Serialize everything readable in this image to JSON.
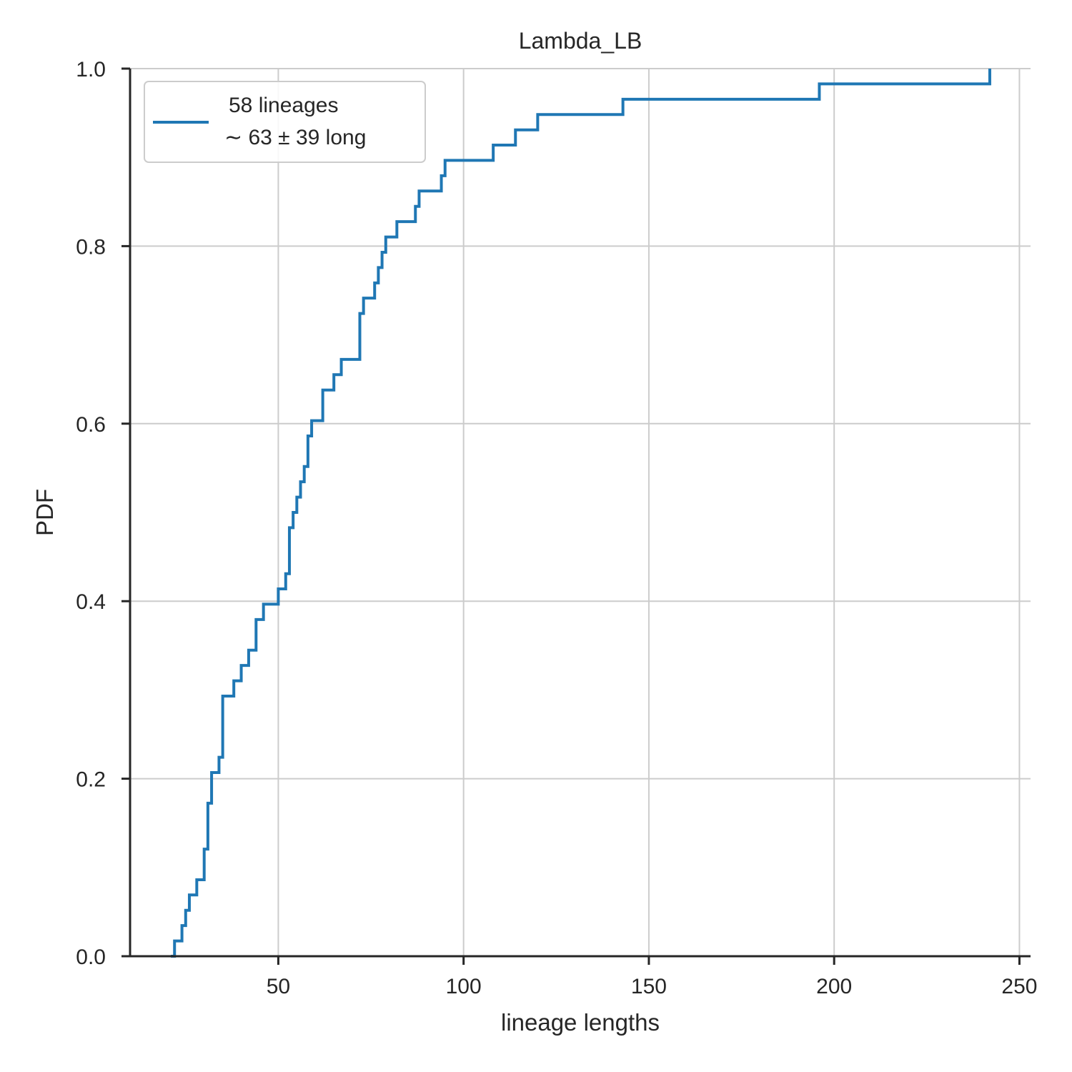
{
  "chart_data": {
    "type": "line",
    "drawstyle": "steps-post",
    "title": "Lambda_LB",
    "xlabel": "lineage lengths",
    "ylabel": "PDF",
    "xlim": [
      10,
      253
    ],
    "ylim": [
      0,
      1.0
    ],
    "xticks": [
      50,
      100,
      150,
      200,
      250
    ],
    "yticks": [
      0.0,
      0.2,
      0.4,
      0.6,
      0.8,
      1.0
    ],
    "xtick_labels": [
      "50",
      "100",
      "150",
      "200",
      "250"
    ],
    "ytick_labels": [
      "0.0",
      "0.2",
      "0.4",
      "0.6",
      "0.8",
      "1.0"
    ],
    "grid": true,
    "legend_position": "upper-left",
    "colors": {
      "series": "#1f77b4",
      "grid": "#cccccc",
      "axis": "#262626"
    },
    "series": [
      {
        "name": "58 lineages\n∼ 63 ± 39 long",
        "legend_lines": [
          "58 lineages",
          "∼ 63 ± 39 long"
        ],
        "x": [
          21,
          22,
          24,
          25,
          26,
          28,
          30,
          31,
          32,
          34,
          35,
          36,
          38,
          40,
          42,
          44,
          45,
          46,
          50,
          52,
          53,
          54,
          55,
          56,
          57,
          58,
          59,
          60,
          62,
          65,
          67,
          72,
          73,
          76,
          77,
          78,
          79,
          80,
          82,
          87,
          88,
          94,
          95,
          108,
          114,
          120,
          143,
          196,
          242
        ],
        "y": [
          0.0,
          0.0172,
          0.0345,
          0.0517,
          0.069,
          0.0862,
          0.1207,
          0.1724,
          0.2069,
          0.2241,
          0.2931,
          0.2931,
          0.3103,
          0.3276,
          0.3448,
          0.3793,
          0.3793,
          0.3966,
          0.4138,
          0.431,
          0.4828,
          0.5,
          0.5172,
          0.5345,
          0.5517,
          0.5862,
          0.6034,
          0.6034,
          0.6379,
          0.6552,
          0.6724,
          0.7241,
          0.7414,
          0.7586,
          0.7759,
          0.7931,
          0.8103,
          0.8103,
          0.8276,
          0.8448,
          0.8621,
          0.8793,
          0.8966,
          0.9138,
          0.931,
          0.9483,
          0.9655,
          0.9828,
          1.0
        ]
      }
    ]
  }
}
